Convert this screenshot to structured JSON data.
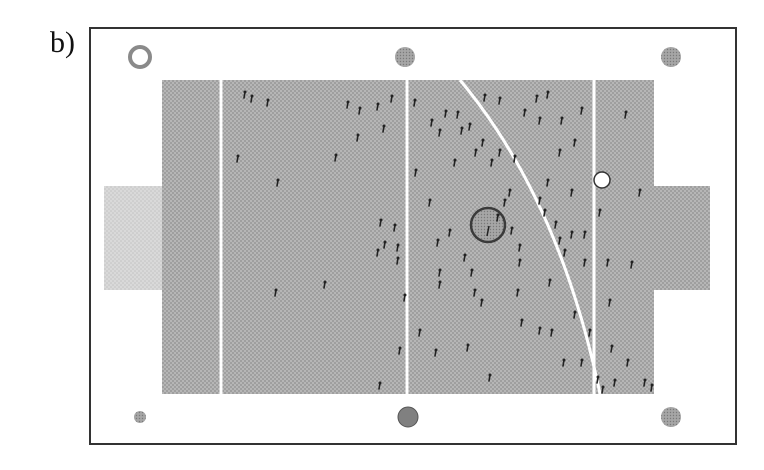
{
  "figure": {
    "label": "b)"
  },
  "colors": {
    "frame": "#333333",
    "panel_fill": "#b6b6b6",
    "panel_texture": "#8f8f8f",
    "side_panel_fill": "#d7d7d7",
    "separator": "#ffffff",
    "marker": "#222222",
    "center_ring": "#4a4a4a",
    "center_fill": "#9a9a9a",
    "open_circle": "#ffffff"
  }
}
